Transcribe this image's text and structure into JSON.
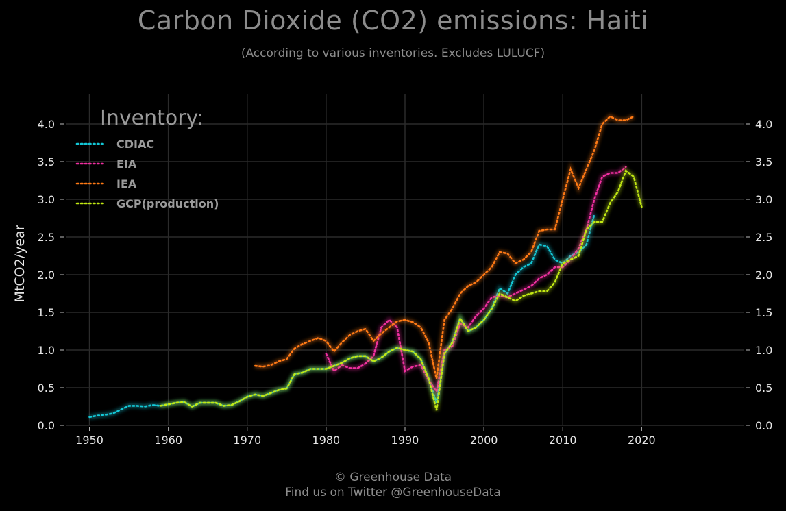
{
  "title": "Carbon Dioxide (CO2) emissions: Haiti",
  "subtitle": "(According to various inventories. Excludes LULUCF)",
  "footer": {
    "line1": "© Greenhouse Data",
    "line2": "Find us on Twitter @GreenhouseData"
  },
  "chart_data": {
    "type": "line",
    "title": "Carbon Dioxide (CO2) emissions: Haiti",
    "subtitle": "(According to various inventories. Excludes LULUCF)",
    "xlabel": "",
    "ylabel": "MtCO2/year",
    "xlim": [
      1947,
      2033
    ],
    "ylim": [
      0,
      4.4
    ],
    "xticks": [
      1950,
      1960,
      1970,
      1980,
      1990,
      2000,
      2010,
      2020
    ],
    "yticks": [
      0.0,
      0.5,
      1.0,
      1.5,
      2.0,
      2.5,
      3.0,
      3.5,
      4.0
    ],
    "ytick_labels": [
      "0.0",
      "0.5",
      "1.0",
      "1.5",
      "2.0",
      "2.5",
      "3.0",
      "3.5",
      "4.0"
    ],
    "grid": true,
    "line_style": "dotted",
    "legend": {
      "title": "Inventory:",
      "placement": "top-left"
    },
    "series": [
      {
        "name": "CDIAC",
        "color": "#13c7d6",
        "x": [
          1950,
          1951,
          1952,
          1953,
          1954,
          1955,
          1956,
          1957,
          1958,
          1959,
          1960,
          1961,
          1962,
          1963,
          1964,
          1965,
          1966,
          1967,
          1968,
          1969,
          1970,
          1971,
          1972,
          1973,
          1974,
          1975,
          1976,
          1977,
          1978,
          1979,
          1980,
          1981,
          1982,
          1983,
          1984,
          1985,
          1986,
          1987,
          1988,
          1989,
          1990,
          1991,
          1992,
          1993,
          1994,
          1995,
          1996,
          1997,
          1998,
          1999,
          2000,
          2001,
          2002,
          2003,
          2004,
          2005,
          2006,
          2007,
          2008,
          2009,
          2010,
          2011,
          2012,
          2013,
          2014
        ],
        "y": [
          0.11,
          0.13,
          0.14,
          0.16,
          0.21,
          0.26,
          0.26,
          0.25,
          0.27,
          0.26,
          0.28,
          0.3,
          0.31,
          0.25,
          0.3,
          0.3,
          0.3,
          0.26,
          0.27,
          0.32,
          0.38,
          0.41,
          0.39,
          0.43,
          0.47,
          0.49,
          0.68,
          0.7,
          0.75,
          0.75,
          0.75,
          0.79,
          0.83,
          0.89,
          0.92,
          0.92,
          0.85,
          0.9,
          0.98,
          1.03,
          1.0,
          0.98,
          0.88,
          0.62,
          0.3,
          0.95,
          1.1,
          1.42,
          1.25,
          1.3,
          1.4,
          1.55,
          1.82,
          1.75,
          2.0,
          2.1,
          2.15,
          2.4,
          2.38,
          2.2,
          2.15,
          2.25,
          2.3,
          2.4,
          2.8
        ]
      },
      {
        "name": "EIA",
        "color": "#f02fa0",
        "x": [
          1980,
          1981,
          1982,
          1983,
          1984,
          1985,
          1986,
          1987,
          1988,
          1989,
          1990,
          1991,
          1992,
          1993,
          1994,
          1995,
          1996,
          1997,
          1998,
          1999,
          2000,
          2001,
          2002,
          2003,
          2004,
          2005,
          2006,
          2007,
          2008,
          2009,
          2010,
          2011,
          2012,
          2013,
          2014,
          2015,
          2016,
          2017,
          2018
        ],
        "y": [
          0.95,
          0.72,
          0.8,
          0.76,
          0.76,
          0.82,
          0.92,
          1.3,
          1.4,
          1.3,
          0.72,
          0.78,
          0.8,
          0.6,
          0.45,
          1.0,
          1.05,
          1.35,
          1.3,
          1.45,
          1.55,
          1.7,
          1.72,
          1.7,
          1.75,
          1.8,
          1.85,
          1.95,
          2.0,
          2.1,
          2.1,
          2.2,
          2.35,
          2.6,
          3.0,
          3.3,
          3.35,
          3.35,
          3.43
        ]
      },
      {
        "name": "IEA",
        "color": "#ff7a14",
        "x": [
          1971,
          1972,
          1973,
          1974,
          1975,
          1976,
          1977,
          1978,
          1979,
          1980,
          1981,
          1982,
          1983,
          1984,
          1985,
          1986,
          1987,
          1988,
          1989,
          1990,
          1991,
          1992,
          1993,
          1994,
          1995,
          1996,
          1997,
          1998,
          1999,
          2000,
          2001,
          2002,
          2003,
          2004,
          2005,
          2006,
          2007,
          2008,
          2009,
          2010,
          2011,
          2012,
          2013,
          2014,
          2015,
          2016,
          2017,
          2018,
          2019
        ],
        "y": [
          0.79,
          0.78,
          0.8,
          0.85,
          0.88,
          1.02,
          1.08,
          1.12,
          1.16,
          1.12,
          0.98,
          1.1,
          1.2,
          1.25,
          1.28,
          1.12,
          1.22,
          1.3,
          1.38,
          1.4,
          1.37,
          1.3,
          1.1,
          0.62,
          1.4,
          1.55,
          1.75,
          1.85,
          1.9,
          2.0,
          2.1,
          2.3,
          2.28,
          2.15,
          2.2,
          2.3,
          2.58,
          2.6,
          2.6,
          3.0,
          3.4,
          3.15,
          3.4,
          3.65,
          4.0,
          4.1,
          4.05,
          4.05,
          4.1
        ]
      },
      {
        "name": "GCP(production)",
        "color": "#c2e812",
        "x": [
          1959,
          1960,
          1961,
          1962,
          1963,
          1964,
          1965,
          1966,
          1967,
          1968,
          1969,
          1970,
          1971,
          1972,
          1973,
          1974,
          1975,
          1976,
          1977,
          1978,
          1979,
          1980,
          1981,
          1982,
          1983,
          1984,
          1985,
          1986,
          1987,
          1988,
          1989,
          1990,
          1991,
          1992,
          1993,
          1994,
          1995,
          1996,
          1997,
          1998,
          1999,
          2000,
          2001,
          2002,
          2003,
          2004,
          2005,
          2006,
          2007,
          2008,
          2009,
          2010,
          2011,
          2012,
          2013,
          2014,
          2015,
          2016,
          2017,
          2018,
          2019,
          2020
        ],
        "y": [
          0.26,
          0.28,
          0.3,
          0.31,
          0.25,
          0.3,
          0.3,
          0.3,
          0.26,
          0.27,
          0.32,
          0.38,
          0.41,
          0.39,
          0.43,
          0.47,
          0.49,
          0.68,
          0.7,
          0.75,
          0.75,
          0.75,
          0.79,
          0.83,
          0.89,
          0.92,
          0.92,
          0.85,
          0.9,
          0.98,
          1.03,
          1.0,
          0.98,
          0.88,
          0.62,
          0.2,
          0.95,
          1.1,
          1.42,
          1.25,
          1.3,
          1.4,
          1.55,
          1.75,
          1.7,
          1.65,
          1.72,
          1.75,
          1.78,
          1.78,
          1.9,
          2.15,
          2.2,
          2.25,
          2.6,
          2.7,
          2.7,
          2.95,
          3.1,
          3.38,
          3.3,
          2.9
        ]
      }
    ]
  }
}
